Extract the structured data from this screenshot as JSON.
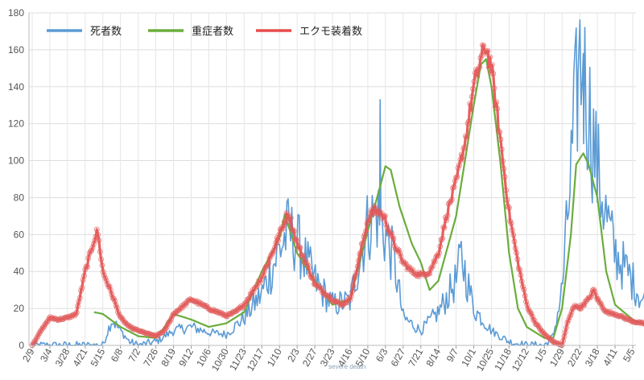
{
  "chart_data": {
    "type": "line",
    "title": "",
    "xlabel": "",
    "ylabel": "",
    "ylim": [
      0,
      180
    ],
    "yticks": [
      0,
      20,
      40,
      60,
      80,
      100,
      120,
      140,
      160,
      180
    ],
    "grid": true,
    "legend_placement": "top-left",
    "x_tick_labels": [
      "2/9",
      "3/4",
      "3/28",
      "4/21",
      "5/15",
      "6/8",
      "7/2",
      "7/26",
      "8/19",
      "9/12",
      "10/6",
      "10/30",
      "11/23",
      "12/17",
      "1/10",
      "2/3",
      "2/27",
      "3/23",
      "4/16",
      "5/10",
      "6/3",
      "6/27",
      "7/21",
      "8/14",
      "9/7",
      "10/1",
      "10/25",
      "11/18",
      "12/12",
      "1/5",
      "1/29",
      "2/22",
      "3/18",
      "4/11",
      "5/5"
    ],
    "series": [
      {
        "name": "死者数",
        "color": "#5b9bd5",
        "keypoints": [
          [
            0,
            0
          ],
          [
            4,
            0
          ],
          [
            4.5,
            14
          ],
          [
            5,
            8
          ],
          [
            5.5,
            2
          ],
          [
            6,
            0
          ],
          [
            7,
            2
          ],
          [
            8,
            8
          ],
          [
            9,
            10
          ],
          [
            10,
            7
          ],
          [
            11,
            6
          ],
          [
            12,
            15
          ],
          [
            13,
            28
          ],
          [
            14,
            52
          ],
          [
            14.5,
            62
          ],
          [
            15,
            56
          ],
          [
            16,
            35
          ],
          [
            17,
            22
          ],
          [
            18,
            24
          ],
          [
            18.6,
            50
          ],
          [
            19,
            65
          ],
          [
            19.5,
            72
          ],
          [
            20,
            60
          ],
          [
            20.5,
            45
          ],
          [
            21,
            15
          ],
          [
            22,
            8
          ],
          [
            23,
            18
          ],
          [
            24,
            35
          ],
          [
            24.3,
            48
          ],
          [
            25,
            20
          ],
          [
            26,
            8
          ],
          [
            27,
            2
          ],
          [
            28,
            0
          ],
          [
            29,
            0
          ],
          [
            29.5,
            5
          ],
          [
            30,
            30
          ],
          [
            30.4,
            80
          ],
          [
            30.7,
            120
          ],
          [
            31,
            155
          ],
          [
            31.4,
            135
          ],
          [
            32,
            95
          ],
          [
            32.5,
            70
          ],
          [
            33,
            50
          ],
          [
            34,
            35
          ],
          [
            34.5,
            25
          ],
          [
            35,
            20
          ]
        ],
        "spikes": [
          [
            19.7,
            133
          ],
          [
            31.2,
            158
          ],
          [
            30.9,
            147
          ]
        ]
      },
      {
        "name": "重症者数",
        "color": "#6aad3d",
        "keypoints": [
          [
            3.5,
            18
          ],
          [
            4,
            17
          ],
          [
            5,
            10
          ],
          [
            6,
            5
          ],
          [
            7,
            4
          ],
          [
            7.5,
            10
          ],
          [
            8,
            17
          ],
          [
            9,
            14
          ],
          [
            10,
            10
          ],
          [
            11,
            12
          ],
          [
            12,
            18
          ],
          [
            13,
            40
          ],
          [
            14,
            58
          ],
          [
            14.3,
            71
          ],
          [
            15,
            50
          ],
          [
            16,
            35
          ],
          [
            17,
            22
          ],
          [
            18,
            25
          ],
          [
            19,
            62
          ],
          [
            19.7,
            86
          ],
          [
            20,
            97
          ],
          [
            20.3,
            95
          ],
          [
            20.8,
            75
          ],
          [
            21.5,
            55
          ],
          [
            22,
            45
          ],
          [
            22.5,
            30
          ],
          [
            23,
            35
          ],
          [
            24,
            70
          ],
          [
            24.5,
            100
          ],
          [
            25,
            130
          ],
          [
            25.4,
            152
          ],
          [
            25.7,
            155
          ],
          [
            26,
            140
          ],
          [
            26.5,
            100
          ],
          [
            27,
            50
          ],
          [
            27.5,
            20
          ],
          [
            28,
            10
          ],
          [
            29,
            4
          ],
          [
            29.5,
            4
          ],
          [
            30,
            20
          ],
          [
            30.5,
            60
          ],
          [
            30.8,
            98
          ],
          [
            31.2,
            104
          ],
          [
            31.5,
            98
          ],
          [
            32,
            80
          ],
          [
            32.5,
            40
          ],
          [
            33,
            22
          ],
          [
            34,
            14
          ],
          [
            35,
            10
          ]
        ]
      },
      {
        "name": "エクモ装着数",
        "color": "#e74c4c",
        "keypoints": [
          [
            0,
            0
          ],
          [
            0.5,
            8
          ],
          [
            1,
            15
          ],
          [
            1.5,
            14
          ],
          [
            2,
            15
          ],
          [
            2.5,
            17
          ],
          [
            3,
            40
          ],
          [
            3.3,
            50
          ],
          [
            3.5,
            57
          ],
          [
            3.7,
            62
          ],
          [
            4,
            40
          ],
          [
            4.5,
            28
          ],
          [
            5,
            15
          ],
          [
            5.5,
            10
          ],
          [
            6,
            8
          ],
          [
            7,
            5
          ],
          [
            7.5,
            8
          ],
          [
            8,
            17
          ],
          [
            9,
            25
          ],
          [
            10,
            20
          ],
          [
            11,
            16
          ],
          [
            11.5,
            18
          ],
          [
            12,
            22
          ],
          [
            13,
            37
          ],
          [
            13.5,
            48
          ],
          [
            14,
            60
          ],
          [
            14.5,
            72
          ],
          [
            15,
            55
          ],
          [
            15.5,
            45
          ],
          [
            16,
            33
          ],
          [
            17,
            25
          ],
          [
            17.5,
            22
          ],
          [
            18,
            25
          ],
          [
            18.7,
            55
          ],
          [
            19,
            68
          ],
          [
            19.3,
            73
          ],
          [
            19.7,
            72
          ],
          [
            20,
            68
          ],
          [
            20.5,
            55
          ],
          [
            21,
            45
          ],
          [
            21.5,
            40
          ],
          [
            22,
            38
          ],
          [
            22.5,
            40
          ],
          [
            23,
            50
          ],
          [
            23.5,
            72
          ],
          [
            24,
            88
          ],
          [
            24.5,
            110
          ],
          [
            25,
            140
          ],
          [
            25.4,
            155
          ],
          [
            25.7,
            162
          ],
          [
            26,
            150
          ],
          [
            26.5,
            112
          ],
          [
            27,
            72
          ],
          [
            27.5,
            45
          ],
          [
            28,
            22
          ],
          [
            28.5,
            12
          ],
          [
            29,
            6
          ],
          [
            29.5,
            2
          ],
          [
            30,
            0
          ],
          [
            30.3,
            12
          ],
          [
            30.7,
            22
          ],
          [
            31,
            20
          ],
          [
            31.5,
            25
          ],
          [
            31.8,
            30
          ],
          [
            32,
            25
          ],
          [
            32.5,
            18
          ],
          [
            33,
            17
          ],
          [
            34,
            13
          ],
          [
            35,
            11
          ]
        ]
      }
    ]
  },
  "legend_note": "severe  death"
}
